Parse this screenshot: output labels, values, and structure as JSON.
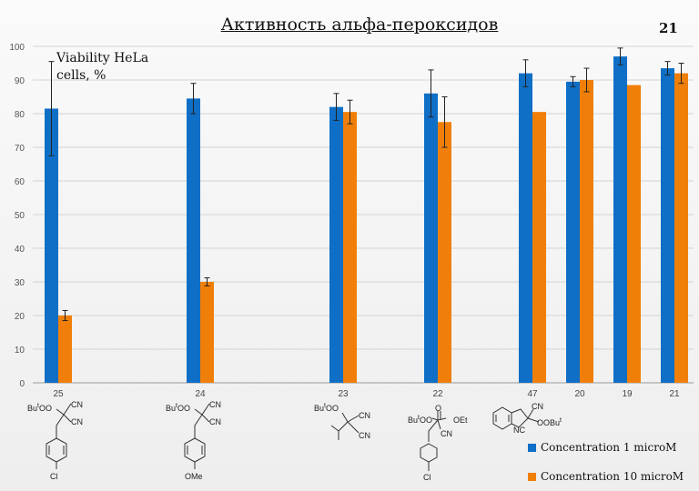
{
  "slide": {
    "title": "Активность альфа-пероксидов",
    "page_number": "21",
    "ylabel": "Viability HeLa\ncells, %"
  },
  "structures": {
    "s25": {
      "a": "Bu",
      "sup": "t",
      "b": "OO",
      "cn1": "CN",
      "cn2": "CN",
      "sub": "Cl"
    },
    "s24": {
      "a": "Bu",
      "sup": "t",
      "b": "OO",
      "cn1": "CN",
      "cn2": "CN",
      "sub": "OMe"
    },
    "s23": {
      "a": "Bu",
      "sup": "t",
      "b": "OO",
      "cn1": "CN",
      "cn2": "CN"
    },
    "s22": {
      "a": "Bu",
      "sup": "t",
      "b": "OO",
      "o": "O",
      "oet": "OEt",
      "cn": "CN",
      "sub": "Cl"
    },
    "s47": {
      "cn": "CN",
      "nc": "NC",
      "oo": "OOBu",
      "sup": "t"
    }
  },
  "chart_data": {
    "type": "bar",
    "title": "Активность альфа-пероксидов",
    "ylabel": "Viability HeLa\ncells, %",
    "xlabel": "",
    "ylim": [
      0,
      100
    ],
    "yticks": [
      0,
      10,
      20,
      30,
      40,
      50,
      60,
      70,
      80,
      90,
      100
    ],
    "grid": true,
    "legend_position": "bottom-right",
    "categories": [
      "25",
      "24",
      "23",
      "22",
      "47",
      "20",
      "19",
      "21"
    ],
    "series": [
      {
        "name": "Concentration 1 microM",
        "color": "#0f6fc6",
        "values": [
          81.5,
          84.5,
          82,
          86,
          92,
          89.5,
          97,
          93.5
        ],
        "errors": [
          14,
          4.5,
          4,
          7,
          4,
          1.5,
          2.5,
          2
        ]
      },
      {
        "name": "Concentration 10 microM",
        "color": "#f07f09",
        "values": [
          20,
          30,
          80.5,
          77.5,
          80.5,
          90,
          88.5,
          92
        ],
        "errors": [
          1.5,
          1.2,
          3.5,
          7.5,
          0,
          3.5,
          0,
          3
        ]
      }
    ]
  }
}
